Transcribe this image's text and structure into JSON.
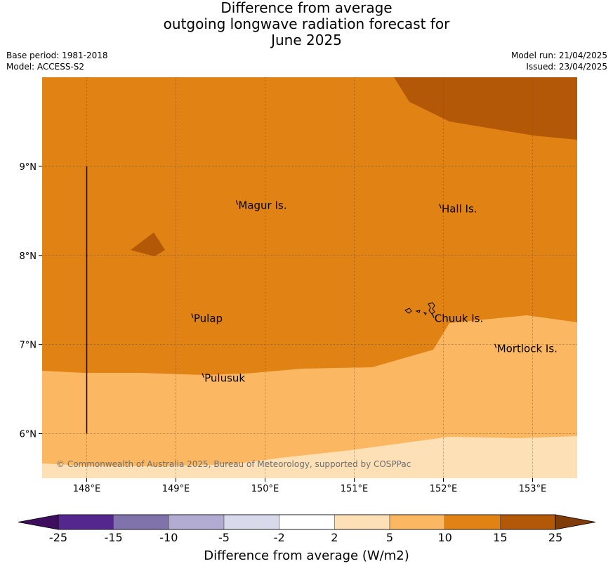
{
  "title_lines": [
    "Difference from average",
    "outgoing longwave radiation forecast for",
    "June 2025"
  ],
  "meta": {
    "base_period": "Base period: 1981-2018",
    "model": "Model: ACCESS-S2",
    "model_run": "Model run: 21/04/2025",
    "issued": "Issued: 23/04/2025"
  },
  "map": {
    "lon_range": [
      147.5,
      153.5
    ],
    "lat_range": [
      5.5,
      10.0
    ],
    "lon_ticks": [
      {
        "value": 148,
        "label": "148°E"
      },
      {
        "value": 149,
        "label": "149°E"
      },
      {
        "value": 150,
        "label": "150°E"
      },
      {
        "value": 151,
        "label": "151°E"
      },
      {
        "value": 152,
        "label": "152°E"
      },
      {
        "value": 153,
        "label": "153°E"
      }
    ],
    "lat_ticks": [
      {
        "value": 9,
        "label": "9°N"
      },
      {
        "value": 8,
        "label": "8°N"
      },
      {
        "value": 7,
        "label": "7°N"
      },
      {
        "value": 6,
        "label": "6°N"
      }
    ],
    "places": [
      {
        "name": "Magur Is.",
        "lon": 149.7,
        "lat": 8.57
      },
      {
        "name": "Hall Is.",
        "lon": 151.98,
        "lat": 8.53
      },
      {
        "name": "Pulap",
        "lon": 149.2,
        "lat": 7.3
      },
      {
        "name": "Chuuk Is.",
        "lon": 151.9,
        "lat": 7.3
      },
      {
        "name": "Mortlock Is.",
        "lon": 152.6,
        "lat": 6.96
      },
      {
        "name": "Pulusuk",
        "lon": 149.32,
        "lat": 6.63
      }
    ],
    "credit": "© Commonwealth of Australia 2025, Bureau of Meteorology, supported by COSPPac"
  },
  "colorbar": {
    "title": "Difference from average (W/m2)",
    "tick_labels": [
      "-25",
      "-15",
      "-10",
      "-5",
      "-2",
      "2",
      "5",
      "10",
      "15",
      "25"
    ],
    "colors": {
      "below_min": "#3f0d5e",
      "bins": [
        "#54278f",
        "#8073ac",
        "#b2abd2",
        "#d8daeb",
        "#ffffff",
        "#fde0b6",
        "#fbb761",
        "#e08214",
        "#b35806"
      ],
      "above_max": "#7f3b08"
    }
  }
}
